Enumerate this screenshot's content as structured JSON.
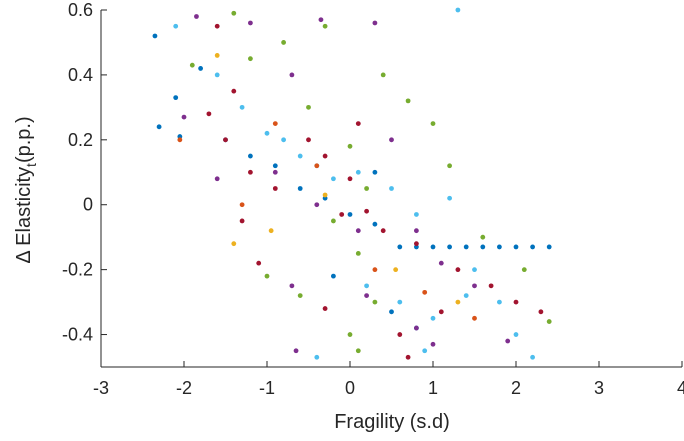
{
  "chart_data": {
    "type": "scatter",
    "xlabel": "Fragility (s.d)",
    "ylabel": {
      "text": "Δ Elasticity",
      "subscript": "t",
      "suffix": "(p.p.)"
    },
    "xlim": [
      -3,
      4
    ],
    "xticks": [
      -3,
      -2,
      -1,
      0,
      1,
      2,
      3,
      4
    ],
    "ylim": [
      -0.5,
      0.6
    ],
    "yticks": [
      -0.4,
      -0.2,
      0,
      0.2,
      0.4,
      0.6
    ],
    "series": [
      {
        "color": "#0072BD",
        "x": [
          -2.35,
          -2.3,
          -2.1,
          -2.05,
          -1.8,
          -1.5,
          -1.2,
          -0.9,
          -0.6,
          -0.3,
          0,
          0.3,
          0.6,
          0.8,
          1.0,
          1.2,
          1.4,
          1.6,
          1.8,
          2.0,
          2.2,
          2.4,
          0.5,
          0.8,
          -0.2,
          0.3
        ],
        "values": [
          0.52,
          0.24,
          0.33,
          0.21,
          0.42,
          0.2,
          0.15,
          0.12,
          0.05,
          0.02,
          -0.03,
          -0.06,
          -0.13,
          -0.13,
          -0.13,
          -0.13,
          -0.13,
          -0.13,
          -0.13,
          -0.13,
          -0.13,
          -0.13,
          -0.33,
          -0.38,
          -0.22,
          0.1
        ]
      },
      {
        "color": "#4DBEEE",
        "x": [
          1.3,
          -2.1,
          -1.6,
          -1.3,
          -1.0,
          -0.8,
          -0.6,
          -0.4,
          -0.2,
          0.1,
          0.5,
          0.8,
          1.2,
          0.2,
          0.6,
          1.0,
          1.4,
          1.8,
          2.0,
          2.2,
          -0.4,
          0.9,
          1.5
        ],
        "values": [
          0.6,
          0.55,
          0.4,
          0.3,
          0.22,
          0.2,
          0.15,
          0.12,
          0.08,
          0.1,
          0.05,
          -0.03,
          0.02,
          -0.25,
          -0.3,
          -0.35,
          -0.28,
          -0.3,
          -0.4,
          -0.47,
          -0.47,
          -0.45,
          -0.2
        ]
      },
      {
        "color": "#77AC30",
        "x": [
          -1.4,
          -1.2,
          -1.9,
          -0.8,
          -0.3,
          0.4,
          0.7,
          1.0,
          1.2,
          -0.5,
          0,
          -0.2,
          0.1,
          0.3,
          0.0,
          0.1,
          -1.0,
          -0.6,
          1.6,
          2.1,
          2.4,
          0.2
        ],
        "values": [
          0.59,
          0.45,
          0.43,
          0.5,
          0.55,
          0.4,
          0.32,
          0.25,
          0.12,
          0.3,
          0.18,
          -0.05,
          -0.15,
          -0.3,
          -0.4,
          -0.45,
          -0.22,
          -0.28,
          -0.1,
          -0.2,
          -0.36,
          0.05
        ]
      },
      {
        "color": "#7E2F8E",
        "x": [
          -1.85,
          -1.2,
          -0.35,
          0.3,
          -2.0,
          -0.7,
          -0.9,
          -0.4,
          0.1,
          0.5,
          0.8,
          1.1,
          1.5,
          -0.7,
          -0.65,
          0.2,
          1.0,
          1.9,
          0.8,
          -1.6
        ],
        "values": [
          0.58,
          0.56,
          0.57,
          0.56,
          0.27,
          0.4,
          0.1,
          0.0,
          -0.08,
          0.2,
          -0.08,
          -0.18,
          -0.25,
          -0.25,
          -0.45,
          -0.28,
          -0.43,
          -0.42,
          -0.38,
          0.08
        ]
      },
      {
        "color": "#A2142F",
        "x": [
          -1.6,
          -1.4,
          -1.7,
          -1.5,
          -1.2,
          -0.9,
          -0.5,
          -0.3,
          0,
          0.2,
          -0.1,
          0.4,
          0.8,
          1.3,
          1.7,
          2.0,
          2.3,
          -1.3,
          -1.1,
          0.6,
          1.1,
          0.7,
          -0.3,
          0.1
        ],
        "values": [
          0.55,
          0.35,
          0.28,
          0.2,
          0.1,
          0.05,
          0.2,
          0.15,
          0.08,
          -0.02,
          -0.03,
          -0.08,
          -0.12,
          -0.2,
          -0.25,
          -0.3,
          -0.33,
          -0.05,
          -0.18,
          -0.4,
          -0.33,
          -0.47,
          -0.32,
          0.25
        ]
      },
      {
        "color": "#D95319",
        "x": [
          -1.3,
          -0.9,
          -0.4,
          0.3,
          0.9,
          -2.05,
          1.5
        ],
        "values": [
          0.0,
          0.25,
          0.12,
          -0.2,
          -0.27,
          0.2,
          -0.35
        ]
      },
      {
        "color": "#EDB120",
        "x": [
          -1.4,
          -1.6,
          -0.95,
          0.55,
          -0.3,
          1.3
        ],
        "values": [
          -0.12,
          0.46,
          -0.08,
          -0.2,
          0.03,
          -0.3
        ]
      }
    ]
  }
}
